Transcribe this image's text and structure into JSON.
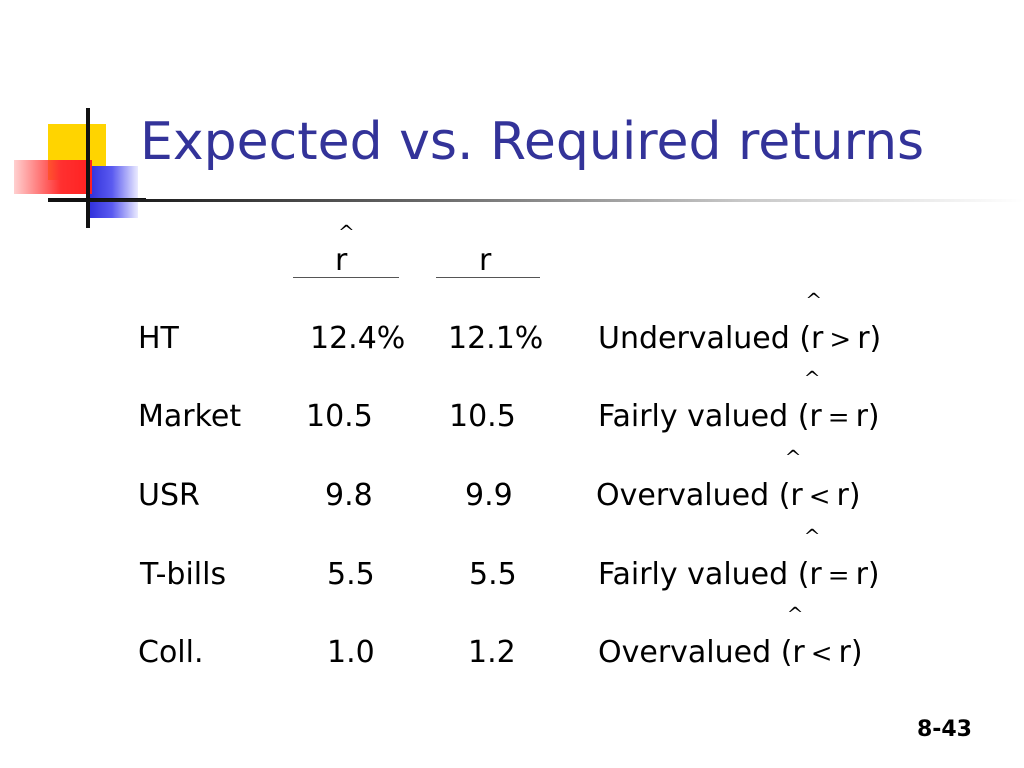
{
  "slide": {
    "title": "Expected vs. Required returns",
    "page_number": "8-43"
  },
  "table": {
    "headers": {
      "expected_return": "r",
      "expected_hat": "^",
      "required_return": "r"
    },
    "rows": [
      {
        "asset": "HT",
        "expected": "12.4%",
        "required": "12.1%",
        "verdict": "Undervalued",
        "open": "(r",
        "relation": ">",
        "close": "r)"
      },
      {
        "asset": "Market",
        "expected": "10.5",
        "required": "10.5",
        "verdict": "Fairly valued",
        "open": "(r",
        "relation": "=",
        "close": "r)"
      },
      {
        "asset": "USR",
        "expected": "9.8",
        "required": "9.9",
        "verdict": "Overvalued",
        "open": "(r",
        "relation": "<",
        "close": "r)"
      },
      {
        "asset": "T-bills",
        "expected": "5.5",
        "required": "5.5",
        "verdict": "Fairly valued",
        "open": "(r",
        "relation": "=",
        "close": "r)"
      },
      {
        "asset": "Coll.",
        "expected": "1.0",
        "required": "1.2",
        "verdict": "Overvalued",
        "open": "(r",
        "relation": "<",
        "close": "r)"
      }
    ]
  }
}
